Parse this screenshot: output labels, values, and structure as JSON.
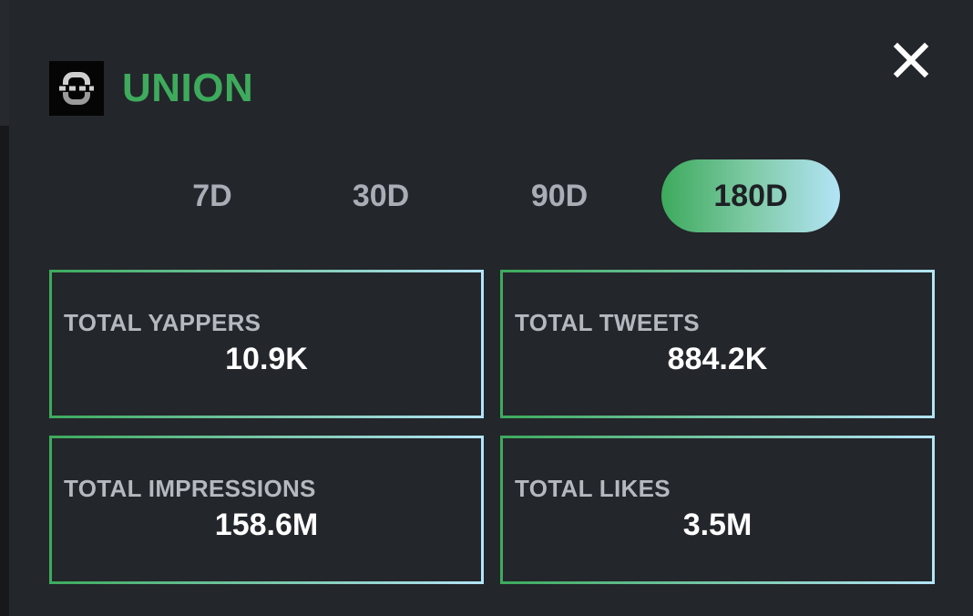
{
  "project": {
    "name": "UNION",
    "logo_icon": "union-logo-icon"
  },
  "close": {
    "icon": "close-icon"
  },
  "periods": {
    "items": [
      "7D",
      "30D",
      "90D",
      "180D"
    ],
    "selected": "180D"
  },
  "stats": [
    {
      "label": "TOTAL YAPPERS",
      "value": "10.9K"
    },
    {
      "label": "TOTAL TWEETS",
      "value": "884.2K"
    },
    {
      "label": "TOTAL IMPRESSIONS",
      "value": "158.6M"
    },
    {
      "label": "TOTAL LIKES",
      "value": "3.5M"
    }
  ],
  "colors": {
    "background": "#23262b",
    "accent_green": "#3daa5c",
    "accent_light_blue": "#b3e4f7",
    "label_gray": "#b4b8bf",
    "value_white": "#ffffff"
  }
}
